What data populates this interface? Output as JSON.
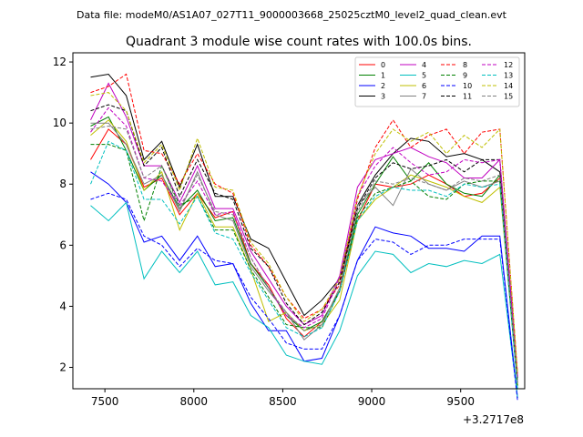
{
  "header": {
    "file_label": "Data file: modeM0/AS1A07_027T11_9000003668_25025cztM0_level2_quad_clean.evt"
  },
  "chart_data": {
    "type": "line",
    "title": "Quadrant 3 module wise count rates with 100.0s bins.",
    "xlabel": "",
    "ylabel": "",
    "x_offset_label": "+3.2717e8",
    "xlim": [
      7320,
      9860
    ],
    "ylim": [
      1.3,
      12.3
    ],
    "x_ticks": [
      7500,
      8000,
      8500,
      9000,
      9500
    ],
    "y_ticks": [
      2,
      4,
      6,
      8,
      10,
      12
    ],
    "grid": false,
    "legend_position": "top-right",
    "x": [
      7420,
      7520,
      7620,
      7720,
      7820,
      7920,
      8020,
      8120,
      8220,
      8320,
      8420,
      8520,
      8620,
      8720,
      8820,
      8920,
      9020,
      9120,
      9220,
      9320,
      9420,
      9520,
      9620,
      9720,
      9820
    ],
    "series": [
      {
        "name": "0",
        "color": "#ff0000",
        "dash": false,
        "values": [
          8.8,
          9.8,
          9.3,
          7.9,
          8.2,
          7.0,
          7.7,
          6.9,
          7.1,
          5.4,
          4.7,
          3.6,
          3.0,
          3.5,
          4.5,
          6.8,
          8.0,
          7.9,
          8.0,
          8.3,
          8.0,
          7.6,
          7.7,
          8.2,
          1.5
        ]
      },
      {
        "name": "1",
        "color": "#008000",
        "dash": false,
        "values": [
          9.9,
          10.2,
          9.1,
          7.8,
          8.3,
          7.2,
          7.8,
          6.8,
          6.9,
          5.4,
          4.6,
          3.7,
          3.2,
          3.5,
          4.5,
          7.0,
          8.0,
          8.9,
          8.1,
          8.7,
          8.0,
          7.7,
          7.6,
          8.3,
          1.4
        ]
      },
      {
        "name": "2",
        "color": "#0000ff",
        "dash": false,
        "values": [
          8.4,
          8.0,
          7.4,
          6.1,
          6.3,
          5.5,
          6.3,
          5.3,
          5.4,
          4.1,
          3.2,
          3.2,
          2.2,
          2.3,
          3.7,
          5.5,
          6.6,
          6.4,
          6.3,
          5.9,
          5.9,
          5.8,
          6.3,
          6.3,
          1.0
        ]
      },
      {
        "name": "3",
        "color": "#000000",
        "dash": false,
        "values": [
          11.5,
          11.6,
          10.9,
          8.8,
          9.4,
          7.9,
          9.3,
          7.6,
          7.6,
          6.2,
          5.9,
          4.8,
          3.7,
          4.2,
          4.9,
          7.3,
          8.3,
          9.0,
          9.5,
          9.4,
          8.9,
          9.0,
          8.8,
          8.4,
          1.4
        ]
      },
      {
        "name": "4",
        "color": "#c000c0",
        "dash": false,
        "values": [
          10.1,
          11.3,
          10.2,
          8.6,
          8.6,
          7.4,
          8.6,
          7.2,
          7.2,
          5.8,
          4.9,
          4.0,
          3.4,
          3.7,
          5.0,
          7.9,
          8.8,
          9.0,
          9.2,
          8.9,
          8.7,
          8.2,
          8.2,
          8.8,
          1.7
        ]
      },
      {
        "name": "5",
        "color": "#00bfbf",
        "dash": false,
        "values": [
          7.3,
          6.8,
          7.4,
          4.9,
          5.8,
          5.1,
          5.8,
          4.7,
          4.8,
          3.7,
          3.3,
          2.4,
          2.2,
          2.1,
          3.2,
          5.0,
          5.8,
          5.7,
          5.1,
          5.4,
          5.3,
          5.5,
          5.4,
          5.7,
          1.0
        ]
      },
      {
        "name": "6",
        "color": "#bfbf00",
        "dash": false,
        "values": [
          9.6,
          10.1,
          9.4,
          7.8,
          8.4,
          6.5,
          7.7,
          6.6,
          6.6,
          5.2,
          3.5,
          3.8,
          3.2,
          3.4,
          4.2,
          6.8,
          7.5,
          7.9,
          8.3,
          8.1,
          7.9,
          7.6,
          7.4,
          7.9,
          1.4
        ]
      },
      {
        "name": "7",
        "color": "#808080",
        "dash": false,
        "values": [
          10.0,
          10.0,
          9.3,
          8.0,
          8.3,
          7.1,
          8.4,
          7.0,
          6.8,
          5.3,
          4.5,
          3.8,
          2.9,
          3.4,
          4.6,
          7.3,
          7.9,
          7.3,
          8.5,
          8.0,
          7.8,
          8.1,
          7.9,
          8.1,
          1.6
        ]
      },
      {
        "name": "8",
        "color": "#ff0000",
        "dash": true,
        "values": [
          11.0,
          11.2,
          11.6,
          9.1,
          9.0,
          8.0,
          9.0,
          8.0,
          7.7,
          6.0,
          5.3,
          4.3,
          3.6,
          3.9,
          4.7,
          7.5,
          9.2,
          10.1,
          9.2,
          9.6,
          9.8,
          9.0,
          9.7,
          9.8,
          1.8
        ]
      },
      {
        "name": "9",
        "color": "#008000",
        "dash": true,
        "values": [
          9.3,
          9.3,
          9.1,
          6.8,
          8.6,
          7.3,
          7.6,
          6.5,
          6.5,
          5.2,
          4.3,
          3.4,
          3.3,
          3.3,
          4.5,
          6.9,
          7.7,
          7.9,
          8.1,
          7.6,
          7.5,
          8.0,
          8.1,
          8.1,
          1.3
        ]
      },
      {
        "name": "10",
        "color": "#0000ff",
        "dash": true,
        "values": [
          7.5,
          7.7,
          7.5,
          6.3,
          6.0,
          5.3,
          5.9,
          5.5,
          5.4,
          4.3,
          3.6,
          2.8,
          2.6,
          2.6,
          3.7,
          5.5,
          6.2,
          6.1,
          5.7,
          6.0,
          6.0,
          6.2,
          6.2,
          6.2,
          0.9
        ]
      },
      {
        "name": "11",
        "color": "#000000",
        "dash": true,
        "values": [
          10.4,
          10.6,
          10.4,
          8.6,
          9.2,
          7.6,
          8.8,
          7.7,
          7.5,
          5.9,
          5.3,
          4.1,
          3.4,
          3.8,
          4.8,
          7.2,
          8.2,
          8.7,
          8.5,
          8.6,
          8.8,
          8.4,
          8.8,
          8.8,
          1.6
        ]
      },
      {
        "name": "12",
        "color": "#c000c0",
        "dash": true,
        "values": [
          9.7,
          10.5,
          9.9,
          8.2,
          8.1,
          7.3,
          8.1,
          7.0,
          7.1,
          5.6,
          4.6,
          3.7,
          3.3,
          3.6,
          4.9,
          7.6,
          8.6,
          9.2,
          8.7,
          8.3,
          8.4,
          8.8,
          8.7,
          8.8,
          1.7
        ]
      },
      {
        "name": "13",
        "color": "#00bfbf",
        "dash": true,
        "values": [
          8.0,
          9.4,
          9.1,
          7.5,
          7.5,
          6.7,
          7.6,
          6.4,
          6.2,
          5.1,
          4.2,
          3.3,
          3.0,
          3.3,
          4.5,
          6.8,
          7.6,
          7.9,
          7.8,
          7.8,
          7.6,
          8.0,
          7.9,
          8.0,
          1.3
        ]
      },
      {
        "name": "14",
        "color": "#bfbf00",
        "dash": true,
        "values": [
          10.9,
          11.0,
          10.4,
          8.7,
          9.3,
          7.8,
          9.5,
          7.9,
          7.8,
          6.1,
          5.4,
          4.3,
          3.5,
          3.9,
          4.9,
          7.6,
          9.0,
          9.8,
          9.4,
          9.7,
          9.0,
          9.6,
          9.2,
          9.8,
          1.8
        ]
      },
      {
        "name": "15",
        "color": "#808080",
        "dash": true,
        "values": [
          9.8,
          9.9,
          9.8,
          8.2,
          8.6,
          7.2,
          8.3,
          7.1,
          7.0,
          5.6,
          4.6,
          3.8,
          3.2,
          3.4,
          4.6,
          7.1,
          8.1,
          8.0,
          8.2,
          8.0,
          7.8,
          8.2,
          8.1,
          8.3,
          1.5
        ]
      }
    ]
  }
}
